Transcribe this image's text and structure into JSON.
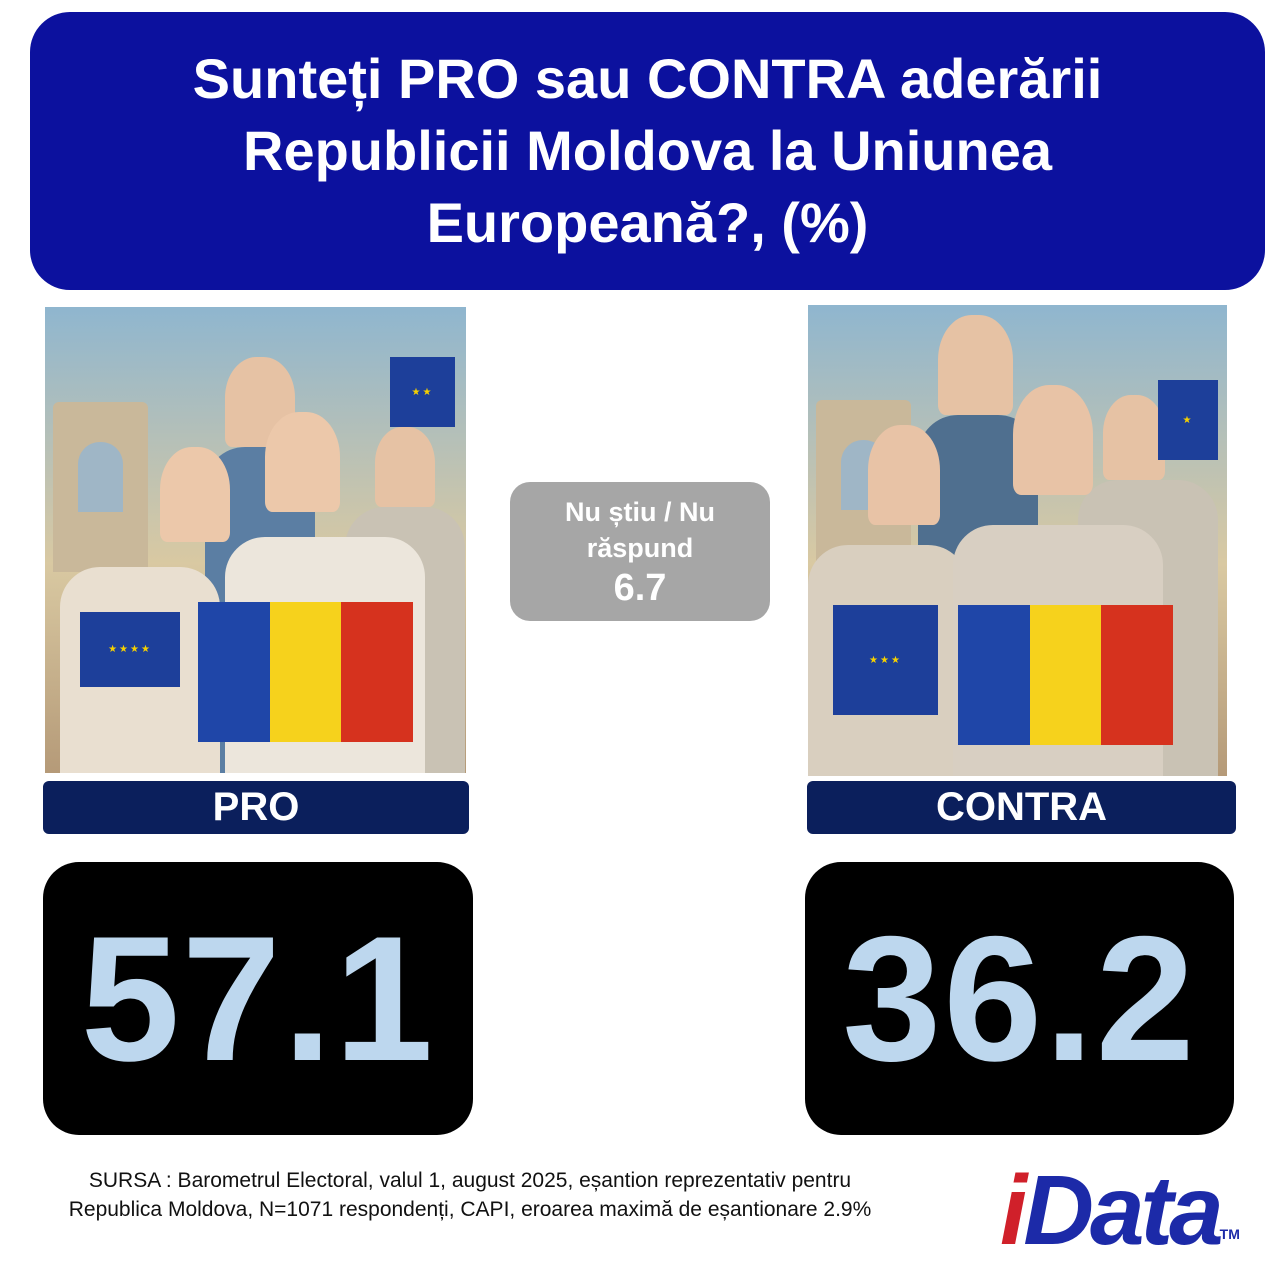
{
  "title": "Sunteți PRO sau CONTRA aderării Republicii Moldova la Uniunea Europeană?, (%)",
  "colors": {
    "title_bg": "#0c119e",
    "label_bg": "#0b1f5c",
    "number_bg": "#000000",
    "number_text": "#bdd7ee",
    "dont_know_bg": "#a6a6a6",
    "logo_red": "#d0202a",
    "logo_blue": "#1c2aa8"
  },
  "pro": {
    "label": "PRO",
    "value": "57.1",
    "image": "smiling-people-with-flags-photo"
  },
  "contra": {
    "label": "CONTRA",
    "value": "36.2",
    "image": "frowning-people-with-flags-photo"
  },
  "dont_know": {
    "label": "Nu știu / Nu răspund",
    "value": "6.7"
  },
  "source": "SURSA : Barometrul Electoral, valul 1, august 2025, eșantion reprezentativ pentru Republica Moldova, N=1071 respondenți, CAPI, eroarea maximă de eșantionare 2.9%",
  "logo": {
    "text": "iData",
    "tm": "TM"
  },
  "chart_data": {
    "type": "table",
    "title": "Sunteți PRO sau CONTRA aderării Republicii Moldova la Uniunea Europeană?, (%)",
    "categories": [
      "PRO",
      "CONTRA",
      "Nu știu / Nu răspund"
    ],
    "values": [
      57.1,
      36.2,
      6.7
    ]
  }
}
